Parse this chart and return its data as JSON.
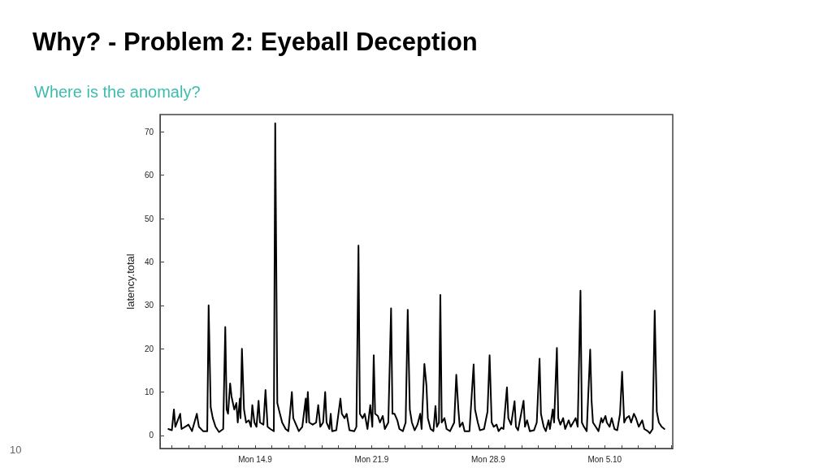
{
  "chart_data": {
    "type": "line",
    "title": "Why? - Problem 2: Eyeball Deception",
    "subtitle": "Where is the anomaly?",
    "ylabel": "latency.total",
    "annotations": [
      "10"
    ],
    "x": [
      "--09-08T19:00",
      "--09-09T00:00",
      "--09-09T03:00",
      "--09-09T05:00",
      "--09-09T12:00",
      "--09-09T14:00",
      "--09-09T19:00",
      "--09-10T00:00",
      "--09-10T05:00",
      "--09-10T12:00",
      "--09-10T15:00",
      "--09-10T21:00",
      "--09-11T03:00",
      "--09-11T05:00",
      "--09-11T08:00",
      "--09-11T11:00",
      "--09-11T15:00",
      "--09-11T20:00",
      "--09-12T02:00",
      "--09-12T05:00",
      "--09-12T07:00",
      "--09-12T09:00",
      "--09-12T12:00",
      "--09-12T14:00",
      "--09-12T18:00",
      "--09-12T21:00",
      "--09-12T23:00",
      "--09-13T02:00",
      "--09-13T03:00",
      "--09-13T05:00",
      "--09-13T08:00",
      "--09-13T11:00",
      "--09-13T15:00",
      "--09-13T18:00",
      "--09-13T20:00",
      "--09-13T23:00",
      "--09-14T02:00",
      "--09-14T05:00",
      "--09-14T07:00",
      "--09-14T12:00",
      "--09-14T15:00",
      "--09-14T18:00",
      "--09-14T22:00",
      "--09-15T03:00",
      "--09-15T05:00",
      "--09-15T08:00",
      "--09-15T11:00",
      "--09-15T15:00",
      "--09-15T20:00",
      "--09-16T00:00",
      "--09-16T05:00",
      "--09-16T07:00",
      "--09-16T11:00",
      "--09-16T15:00",
      "--09-16T20:00",
      "--09-17T01:00",
      "--09-17T02:00",
      "--09-17T04:00",
      "--09-17T06:00",
      "--09-17T11:00",
      "--09-17T16:00",
      "--09-17T19:00",
      "--09-17T22:00",
      "--09-18T02:00",
      "--09-18T05:00",
      "--09-18T07:00",
      "--09-18T11:00",
      "--09-18T13:00",
      "--09-18T15:00",
      "--09-18T21:00",
      "--09-19T03:00",
      "--09-19T05:00",
      "--09-19T09:00",
      "--09-19T12:00",
      "--09-19T16:00",
      "--09-19T23:00",
      "--09-20T02:00",
      "--09-20T05:00",
      "--09-20T07:00",
      "--09-20T11:00",
      "--09-20T14:00",
      "--09-20T18:00",
      "--09-20T22:00",
      "--09-21T01:00",
      "--09-21T03:00",
      "--09-21T05:00",
      "--09-21T09:00",
      "--09-21T12:00",
      "--09-21T16:00",
      "--09-21T19:00",
      "--09-22T00:00",
      "--09-22T04:00",
      "--09-22T06:00",
      "--09-22T09:00",
      "--09-22T13:00",
      "--09-22T16:00",
      "--09-22T21:00",
      "--09-23T01:00",
      "--09-23T04:00",
      "--09-23T07:00",
      "--09-23T10:00",
      "--09-23T14:00",
      "--09-23T18:00",
      "--09-23T22:00",
      "--09-24T00:00",
      "--09-24T04:00",
      "--09-24T07:00",
      "--09-24T09:00",
      "--09-24T13:00",
      "--09-24T17:00",
      "--09-24T20:00",
      "--09-24T22:00",
      "--09-25T01:00",
      "--09-25T03:00",
      "--09-25T05:00",
      "--09-25T09:00",
      "--09-25T12:00",
      "--09-25T17:00",
      "--09-25T23:00",
      "--09-26T02:00",
      "--09-26T05:00",
      "--09-26T07:00",
      "--09-26T11:00",
      "--09-26T14:00",
      "--09-26T21:00",
      "--09-27T03:00",
      "--09-27T05:00",
      "--09-27T09:00",
      "--09-27T12:00",
      "--09-27T18:00",
      "--09-27T23:00",
      "--09-28T02:00",
      "--09-28T05:00",
      "--09-28T08:00",
      "--09-28T12:00",
      "--09-28T15:00",
      "--09-28T19:00",
      "--09-28T22:00",
      "--09-29T03:00",
      "--09-29T05:00",
      "--09-29T09:00",
      "--09-29T14:00",
      "--09-29T16:00",
      "--09-29T19:00",
      "--09-30T03:00",
      "--09-30T05:00",
      "--09-30T08:00",
      "--09-30T12:00",
      "--09-30T18:00",
      "--09-30T22:00",
      "--10-01T02:00",
      "--10-01T04:00",
      "--10-01T08:00",
      "--10-01T11:00",
      "--10-01T15:00",
      "--10-01T17:00",
      "--10-01T21:00",
      "--10-01T23:00",
      "--10-02T03:00",
      "--10-02T05:00",
      "--10-02T08:00",
      "--10-02T12:00",
      "--10-02T15:00",
      "--10-02T20:00",
      "--10-02T23:00",
      "--10-03T06:00",
      "--10-03T09:00",
      "--10-03T13:00",
      "--10-03T15:00",
      "--10-03T18:00",
      "--10-03T22:00",
      "--10-04T03:00",
      "--10-04T05:00",
      "--10-04T07:00",
      "--10-04T11:00",
      "--10-04T15:00",
      "--10-04T19:00",
      "--10-04T21:00",
      "--10-05T01:00",
      "--10-05T03:00",
      "--10-05T07:00",
      "--10-05T10:00",
      "--10-05T14:00",
      "--10-05T18:00",
      "--10-05T22:00",
      "--10-06T01:00",
      "--10-06T04:00",
      "--10-06T07:00",
      "--10-06T11:00",
      "--10-06T14:00",
      "--10-06T18:00",
      "--10-06T21:00",
      "--10-07T01:00",
      "--10-07T06:00",
      "--10-07T09:00",
      "--10-07T14:00",
      "--10-07T17:00",
      "--10-07T21:00",
      "--10-08T00:00",
      "--10-08T03:00",
      "--10-08T06:00",
      "--10-08T10:00",
      "--10-08T14:00"
    ],
    "series": [
      {
        "color": "#000000",
        "values": [
          1.5,
          1.2,
          6,
          2,
          5,
          1.5,
          2,
          2.5,
          1,
          5,
          2,
          1,
          1,
          30,
          6.5,
          4,
          2,
          0.8,
          1.5,
          25,
          6,
          5,
          12,
          9,
          6,
          7.5,
          3,
          8.5,
          4,
          20,
          6,
          3,
          3.5,
          2,
          7,
          3,
          2,
          8,
          3,
          2.5,
          10.5,
          2,
          1.5,
          1,
          72,
          7.5,
          5.5,
          3,
          1.5,
          1,
          10,
          4,
          2.5,
          1,
          2,
          8.5,
          3,
          10,
          3,
          2.5,
          3,
          7,
          2,
          3,
          10,
          3,
          1.5,
          5,
          1,
          1.2,
          8.5,
          5,
          4,
          5,
          1.2,
          1,
          2,
          43.8,
          5,
          4,
          5,
          1.5,
          7,
          2,
          18.5,
          5,
          4.5,
          3,
          4.5,
          1.5,
          3,
          29.3,
          5,
          5,
          3.5,
          1.5,
          1,
          3,
          29,
          6,
          3,
          1.2,
          2.5,
          5,
          1.5,
          16.5,
          11.5,
          4,
          1.5,
          1,
          6.8,
          2,
          3,
          32.4,
          3,
          4,
          1.5,
          1,
          3,
          14,
          6,
          2,
          3,
          1,
          1,
          16.4,
          6,
          3,
          1.2,
          1.5,
          5.5,
          18.5,
          3,
          2,
          2.5,
          1,
          1.8,
          1.5,
          11.1,
          4,
          2.5,
          7.9,
          2,
          1.2,
          8,
          2,
          3.5,
          1,
          1.2,
          3,
          17.7,
          5,
          2,
          1,
          3.5,
          1.5,
          6,
          3,
          20.2,
          4,
          2.5,
          4,
          1.5,
          3.5,
          2,
          4,
          2,
          33.4,
          3,
          2,
          1,
          19.8,
          8,
          3,
          2,
          1,
          4,
          3,
          4.5,
          3,
          2,
          4,
          1.5,
          1.2,
          5,
          14.7,
          3,
          4,
          4.5,
          3,
          5,
          4,
          2,
          3.5,
          1.5,
          1,
          0.5,
          1.5,
          28.8,
          5.5,
          3,
          2,
          1.5
        ]
      }
    ],
    "xlim": [
      "--09-08T07:00",
      "--10-09T02:00"
    ],
    "xticks": [
      {
        "value": "--09-09",
        "label": null
      },
      {
        "value": "--09-10",
        "label": null
      },
      {
        "value": "--09-11",
        "label": null
      },
      {
        "value": "--09-12",
        "label": null
      },
      {
        "value": "--09-13",
        "label": null
      },
      {
        "value": "--09-14",
        "label": "Mon 14.9"
      },
      {
        "value": "--09-15",
        "label": null
      },
      {
        "value": "--09-16",
        "label": null
      },
      {
        "value": "--09-17",
        "label": null
      },
      {
        "value": "--09-18",
        "label": null
      },
      {
        "value": "--09-19",
        "label": null
      },
      {
        "value": "--09-20",
        "label": null
      },
      {
        "value": "--09-21",
        "label": "Mon 21.9"
      },
      {
        "value": "--09-22",
        "label": null
      },
      {
        "value": "--09-23",
        "label": null
      },
      {
        "value": "--09-24",
        "label": null
      },
      {
        "value": "--09-25",
        "label": null
      },
      {
        "value": "--09-26",
        "label": null
      },
      {
        "value": "--09-27",
        "label": null
      },
      {
        "value": "--09-28",
        "label": "Mon 28.9"
      },
      {
        "value": "--09-29",
        "label": null
      },
      {
        "value": "--09-30",
        "label": null
      },
      {
        "value": "--10-01",
        "label": null
      },
      {
        "value": "--10-02",
        "label": null
      },
      {
        "value": "--10-03",
        "label": null
      },
      {
        "value": "--10-04",
        "label": null
      },
      {
        "value": "--10-05",
        "label": "Mon 5.10"
      },
      {
        "value": "--10-06",
        "label": null
      },
      {
        "value": "--10-07",
        "label": null
      },
      {
        "value": "--10-08",
        "label": null
      },
      {
        "value": "--10-09",
        "label": null
      }
    ],
    "ylim": [
      -3,
      74
    ],
    "yticks": [
      0,
      10,
      20,
      30,
      40,
      50,
      60,
      70
    ],
    "grid": false,
    "marker": "none",
    "line_style": "solid"
  }
}
